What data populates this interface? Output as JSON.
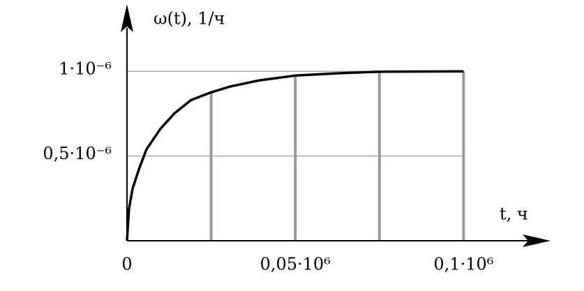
{
  "chart_data": {
    "type": "line",
    "ylabel": "ω(t), 1/ч",
    "xlabel": "t, ч",
    "x": [
      0,
      600,
      1700,
      3700,
      5800,
      9900,
      14000,
      19000,
      25000,
      30600,
      39000,
      50000,
      61700,
      75000,
      100000
    ],
    "values": [
      0,
      1.9e-07,
      3.1e-07,
      4.3e-07,
      5.4e-07,
      6.6e-07,
      7.5e-07,
      8.3e-07,
      8.76e-07,
      9.1e-07,
      9.46e-07,
      9.75e-07,
      9.88e-07,
      9.98e-07,
      1e-06
    ],
    "color": "#000000",
    "xlim": [
      0,
      125000
    ],
    "ylim": [
      0,
      1.38e-06
    ],
    "xticks": [
      0,
      {
        "value": 50000,
        "label": "0,05·10⁶"
      },
      {
        "value": 100000,
        "label": "0,1·10⁶"
      }
    ],
    "xgrid": [
      25000,
      50000,
      75000,
      100000
    ],
    "yticks": [
      {
        "value": 5e-07,
        "label": "0,5·10⁻⁶"
      },
      {
        "value": 1e-06,
        "label": "1·10⁻⁶"
      }
    ],
    "grid": true
  }
}
